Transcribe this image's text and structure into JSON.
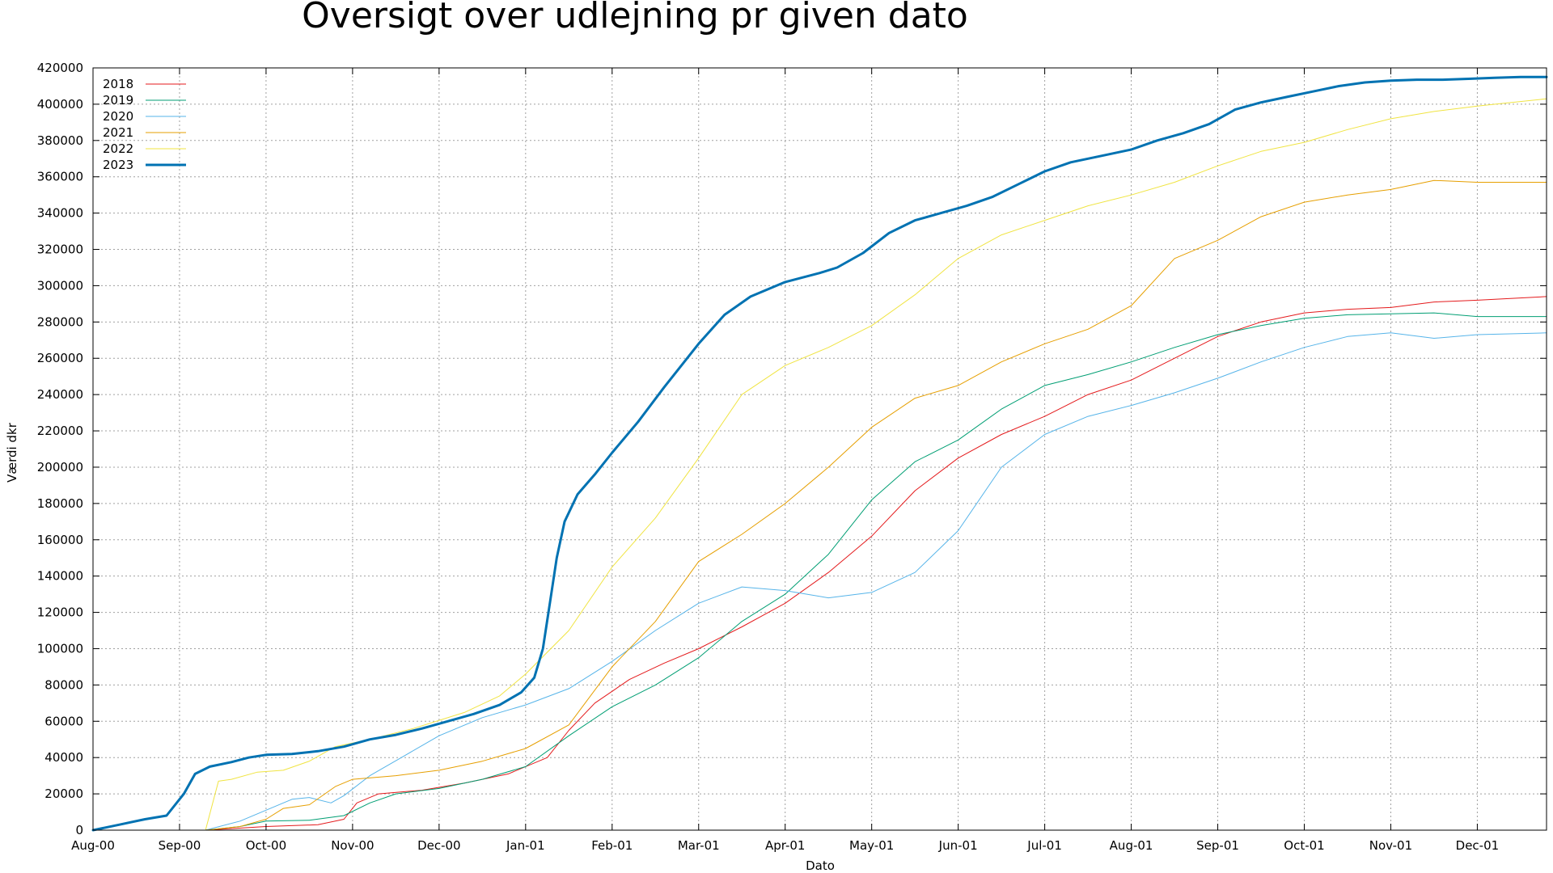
{
  "chart_data": {
    "type": "line",
    "title": "Oversigt over udlejning pr given dato",
    "xlabel": "Dato",
    "ylabel": "Værdi dkr",
    "ylim": [
      0,
      420000
    ],
    "xlim": [
      0,
      16.8
    ],
    "grid": true,
    "legend_position": "top-left",
    "x_ticks": [
      {
        "pos": 0,
        "label": "Aug-00"
      },
      {
        "pos": 1,
        "label": "Sep-00"
      },
      {
        "pos": 2,
        "label": "Oct-00"
      },
      {
        "pos": 3,
        "label": "Nov-00"
      },
      {
        "pos": 4,
        "label": "Dec-00"
      },
      {
        "pos": 5,
        "label": "Jan-01"
      },
      {
        "pos": 6,
        "label": "Feb-01"
      },
      {
        "pos": 7,
        "label": "Mar-01"
      },
      {
        "pos": 8,
        "label": "Apr-01"
      },
      {
        "pos": 9,
        "label": "May-01"
      },
      {
        "pos": 10,
        "label": "Jun-01"
      },
      {
        "pos": 11,
        "label": "Jul-01"
      },
      {
        "pos": 12,
        "label": "Aug-01"
      },
      {
        "pos": 13,
        "label": "Sep-01"
      },
      {
        "pos": 14,
        "label": "Oct-01"
      },
      {
        "pos": 15,
        "label": "Nov-01"
      },
      {
        "pos": 16,
        "label": "Dec-01"
      }
    ],
    "y_ticks": [
      "0",
      "20000",
      "40000",
      "60000",
      "80000",
      "100000",
      "120000",
      "140000",
      "160000",
      "180000",
      "200000",
      "220000",
      "240000",
      "260000",
      "280000",
      "300000",
      "320000",
      "340000",
      "360000",
      "380000",
      "400000",
      "420000"
    ],
    "series": [
      {
        "name": "2018",
        "color": "#e41a1c",
        "width": 1,
        "points": [
          [
            1.3,
            0
          ],
          [
            2,
            2000
          ],
          [
            2.6,
            3000
          ],
          [
            2.9,
            6000
          ],
          [
            3.05,
            15000
          ],
          [
            3.3,
            20000
          ],
          [
            3.8,
            22000
          ],
          [
            4.3,
            26000
          ],
          [
            4.8,
            31000
          ],
          [
            5.25,
            40000
          ],
          [
            5.5,
            55000
          ],
          [
            5.8,
            70000
          ],
          [
            6.2,
            83000
          ],
          [
            6.6,
            92000
          ],
          [
            7.0,
            100000
          ],
          [
            7.5,
            112000
          ],
          [
            8.0,
            125000
          ],
          [
            8.5,
            142000
          ],
          [
            9.0,
            162000
          ],
          [
            9.5,
            187000
          ],
          [
            10.0,
            205000
          ],
          [
            10.5,
            218000
          ],
          [
            11.0,
            228000
          ],
          [
            11.5,
            240000
          ],
          [
            12.0,
            248000
          ],
          [
            12.5,
            260000
          ],
          [
            13.0,
            272000
          ],
          [
            13.5,
            280000
          ],
          [
            14.0,
            285000
          ],
          [
            14.5,
            287000
          ],
          [
            15.0,
            288000
          ],
          [
            15.5,
            291000
          ],
          [
            16.0,
            292000
          ],
          [
            16.8,
            294000
          ]
        ]
      },
      {
        "name": "2019",
        "color": "#009e73",
        "width": 1,
        "points": [
          [
            1.3,
            0
          ],
          [
            1.7,
            2000
          ],
          [
            2.0,
            5000
          ],
          [
            2.5,
            5500
          ],
          [
            2.9,
            8000
          ],
          [
            3.2,
            15000
          ],
          [
            3.5,
            20000
          ],
          [
            4.0,
            23000
          ],
          [
            4.5,
            28000
          ],
          [
            5.0,
            35000
          ],
          [
            5.5,
            52000
          ],
          [
            6.0,
            68000
          ],
          [
            6.5,
            80000
          ],
          [
            7.0,
            95000
          ],
          [
            7.5,
            115000
          ],
          [
            8.0,
            130000
          ],
          [
            8.5,
            152000
          ],
          [
            9.0,
            182000
          ],
          [
            9.5,
            203000
          ],
          [
            10.0,
            215000
          ],
          [
            10.5,
            232000
          ],
          [
            11.0,
            245000
          ],
          [
            11.5,
            251000
          ],
          [
            12.0,
            258000
          ],
          [
            12.5,
            266000
          ],
          [
            13.0,
            273000
          ],
          [
            13.5,
            278000
          ],
          [
            14.0,
            282000
          ],
          [
            14.5,
            284000
          ],
          [
            15.0,
            284500
          ],
          [
            15.5,
            285000
          ],
          [
            16.0,
            283000
          ],
          [
            16.8,
            283000
          ]
        ]
      },
      {
        "name": "2020",
        "color": "#56b4e9",
        "width": 1,
        "points": [
          [
            1.3,
            0
          ],
          [
            1.7,
            5000
          ],
          [
            2.0,
            11000
          ],
          [
            2.3,
            17000
          ],
          [
            2.5,
            18000
          ],
          [
            2.75,
            15000
          ],
          [
            2.9,
            19000
          ],
          [
            3.2,
            30000
          ],
          [
            3.6,
            41000
          ],
          [
            4.0,
            52000
          ],
          [
            4.5,
            62000
          ],
          [
            5.0,
            69000
          ],
          [
            5.5,
            78000
          ],
          [
            6.0,
            93000
          ],
          [
            6.5,
            110000
          ],
          [
            7.0,
            125000
          ],
          [
            7.5,
            134000
          ],
          [
            8.0,
            132000
          ],
          [
            8.5,
            128000
          ],
          [
            9.0,
            131000
          ],
          [
            9.5,
            142000
          ],
          [
            10.0,
            165000
          ],
          [
            10.5,
            200000
          ],
          [
            11.0,
            218000
          ],
          [
            11.5,
            228000
          ],
          [
            12.0,
            234000
          ],
          [
            12.5,
            241000
          ],
          [
            13.0,
            249000
          ],
          [
            13.5,
            258000
          ],
          [
            14.0,
            266000
          ],
          [
            14.5,
            272000
          ],
          [
            15.0,
            274000
          ],
          [
            15.5,
            271000
          ],
          [
            16.0,
            273000
          ],
          [
            16.8,
            274000
          ]
        ]
      },
      {
        "name": "2021",
        "color": "#e69f00",
        "width": 1,
        "points": [
          [
            1.3,
            0
          ],
          [
            1.7,
            2000
          ],
          [
            2.0,
            6000
          ],
          [
            2.2,
            12000
          ],
          [
            2.5,
            14000
          ],
          [
            2.8,
            24000
          ],
          [
            3.0,
            28000
          ],
          [
            3.5,
            30000
          ],
          [
            4.0,
            33000
          ],
          [
            4.5,
            38000
          ],
          [
            5.0,
            45000
          ],
          [
            5.5,
            58000
          ],
          [
            6.0,
            90000
          ],
          [
            6.5,
            115000
          ],
          [
            7.0,
            148000
          ],
          [
            7.5,
            163000
          ],
          [
            8.0,
            180000
          ],
          [
            8.5,
            200000
          ],
          [
            9.0,
            222000
          ],
          [
            9.5,
            238000
          ],
          [
            10.0,
            245000
          ],
          [
            10.5,
            258000
          ],
          [
            11.0,
            268000
          ],
          [
            11.5,
            276000
          ],
          [
            12.0,
            289000
          ],
          [
            12.5,
            315000
          ],
          [
            13.0,
            325000
          ],
          [
            13.5,
            338000
          ],
          [
            14.0,
            346000
          ],
          [
            14.5,
            350000
          ],
          [
            15.0,
            353000
          ],
          [
            15.5,
            358000
          ],
          [
            16.0,
            357000
          ],
          [
            16.8,
            357000
          ]
        ]
      },
      {
        "name": "2022",
        "color": "#f0e442",
        "width": 1,
        "points": [
          [
            1.3,
            0
          ],
          [
            1.45,
            27000
          ],
          [
            1.6,
            28000
          ],
          [
            1.9,
            32000
          ],
          [
            2.2,
            33000
          ],
          [
            2.5,
            38000
          ],
          [
            2.8,
            46000
          ],
          [
            3.2,
            50000
          ],
          [
            3.7,
            56000
          ],
          [
            4.3,
            65000
          ],
          [
            4.7,
            74000
          ],
          [
            5.0,
            86000
          ],
          [
            5.5,
            110000
          ],
          [
            6.0,
            145000
          ],
          [
            6.5,
            172000
          ],
          [
            7.0,
            205000
          ],
          [
            7.5,
            240000
          ],
          [
            8.0,
            256000
          ],
          [
            8.5,
            266000
          ],
          [
            9.0,
            278000
          ],
          [
            9.5,
            295000
          ],
          [
            10.0,
            315000
          ],
          [
            10.5,
            328000
          ],
          [
            11.0,
            336000
          ],
          [
            11.5,
            344000
          ],
          [
            12.0,
            350000
          ],
          [
            12.5,
            357000
          ],
          [
            13.0,
            366000
          ],
          [
            13.5,
            374000
          ],
          [
            14.0,
            379000
          ],
          [
            14.5,
            386000
          ],
          [
            15.0,
            392000
          ],
          [
            15.5,
            396000
          ],
          [
            16.0,
            399000
          ],
          [
            16.8,
            403000
          ]
        ]
      },
      {
        "name": "2023",
        "color": "#0072b2",
        "width": 3,
        "points": [
          [
            0,
            0
          ],
          [
            0.3,
            3000
          ],
          [
            0.6,
            6000
          ],
          [
            0.85,
            8000
          ],
          [
            1.05,
            20000
          ],
          [
            1.18,
            31000
          ],
          [
            1.35,
            35000
          ],
          [
            1.6,
            37500
          ],
          [
            1.8,
            40000
          ],
          [
            2.0,
            41500
          ],
          [
            2.3,
            42000
          ],
          [
            2.6,
            43500
          ],
          [
            2.9,
            46000
          ],
          [
            3.2,
            50000
          ],
          [
            3.5,
            52500
          ],
          [
            3.8,
            56000
          ],
          [
            4.1,
            60000
          ],
          [
            4.4,
            64000
          ],
          [
            4.7,
            69000
          ],
          [
            4.95,
            76000
          ],
          [
            5.1,
            84000
          ],
          [
            5.2,
            100000
          ],
          [
            5.28,
            125000
          ],
          [
            5.36,
            150000
          ],
          [
            5.45,
            170000
          ],
          [
            5.6,
            185000
          ],
          [
            5.8,
            196000
          ],
          [
            6.0,
            208000
          ],
          [
            6.3,
            225000
          ],
          [
            6.6,
            244000
          ],
          [
            7.0,
            268000
          ],
          [
            7.3,
            284000
          ],
          [
            7.6,
            294000
          ],
          [
            8.0,
            302000
          ],
          [
            8.4,
            307000
          ],
          [
            8.6,
            310000
          ],
          [
            8.9,
            318000
          ],
          [
            9.2,
            329000
          ],
          [
            9.5,
            336000
          ],
          [
            9.8,
            340000
          ],
          [
            10.1,
            344000
          ],
          [
            10.4,
            349000
          ],
          [
            10.7,
            356000
          ],
          [
            11.0,
            363000
          ],
          [
            11.3,
            368000
          ],
          [
            11.7,
            372000
          ],
          [
            12.0,
            375000
          ],
          [
            12.3,
            380000
          ],
          [
            12.6,
            384000
          ],
          [
            12.9,
            389000
          ],
          [
            13.2,
            397000
          ],
          [
            13.5,
            401000
          ],
          [
            13.8,
            404000
          ],
          [
            14.1,
            407000
          ],
          [
            14.4,
            410000
          ],
          [
            14.7,
            412000
          ],
          [
            15.0,
            413000
          ],
          [
            15.3,
            413500
          ],
          [
            15.6,
            413500
          ],
          [
            15.9,
            414000
          ],
          [
            16.2,
            414500
          ],
          [
            16.5,
            415000
          ],
          [
            16.8,
            415000
          ]
        ]
      }
    ]
  }
}
